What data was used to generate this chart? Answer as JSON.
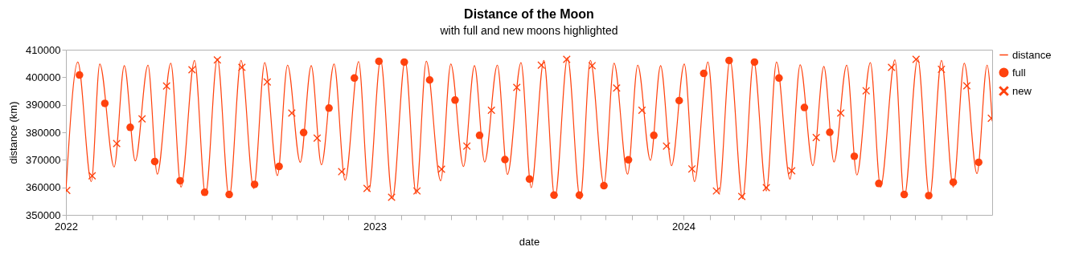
{
  "chart_data": {
    "type": "line",
    "title": "Distance of the Moon",
    "subtitle": "with full and new moons highlighted",
    "xlabel": "date",
    "ylabel": "distance (km)",
    "xlim": [
      "2022-01-01",
      "2024-12-31"
    ],
    "xticks": [
      {
        "value": "2022-01",
        "label": "2022"
      },
      {
        "value": "2022-02",
        "label": null
      },
      {
        "value": "2022-03",
        "label": null
      },
      {
        "value": "2022-04",
        "label": null
      },
      {
        "value": "2022-05",
        "label": null
      },
      {
        "value": "2022-06",
        "label": null
      },
      {
        "value": "2022-07",
        "label": null
      },
      {
        "value": "2022-08",
        "label": null
      },
      {
        "value": "2022-09",
        "label": null
      },
      {
        "value": "2022-10",
        "label": null
      },
      {
        "value": "2022-11",
        "label": null
      },
      {
        "value": "2022-12",
        "label": null
      },
      {
        "value": "2023-01",
        "label": "2023"
      },
      {
        "value": "2023-02",
        "label": null
      },
      {
        "value": "2023-03",
        "label": null
      },
      {
        "value": "2023-04",
        "label": null
      },
      {
        "value": "2023-05",
        "label": null
      },
      {
        "value": "2023-06",
        "label": null
      },
      {
        "value": "2023-07",
        "label": null
      },
      {
        "value": "2023-08",
        "label": null
      },
      {
        "value": "2023-09",
        "label": null
      },
      {
        "value": "2023-10",
        "label": null
      },
      {
        "value": "2023-11",
        "label": null
      },
      {
        "value": "2023-12",
        "label": null
      },
      {
        "value": "2024-01",
        "label": "2024"
      },
      {
        "value": "2024-02",
        "label": null
      },
      {
        "value": "2024-03",
        "label": null
      },
      {
        "value": "2024-04",
        "label": null
      },
      {
        "value": "2024-05",
        "label": null
      },
      {
        "value": "2024-06",
        "label": null
      },
      {
        "value": "2024-07",
        "label": null
      },
      {
        "value": "2024-08",
        "label": null
      },
      {
        "value": "2024-09",
        "label": null
      },
      {
        "value": "2024-10",
        "label": null
      },
      {
        "value": "2024-11",
        "label": null
      },
      {
        "value": "2024-12",
        "label": null
      }
    ],
    "ylim": [
      350000,
      410000
    ],
    "yticks": [
      350000,
      360000,
      370000,
      380000,
      390000,
      400000,
      410000
    ],
    "legend": "right",
    "series": [
      {
        "name": "distance",
        "type": "line",
        "marker": "none",
        "line_style": "solid",
        "color": "#ff420e",
        "x": [
          "2022-01-01",
          "2022-01-15",
          "2022-01-31",
          "2022-02-10",
          "2022-02-27",
          "2022-03-11",
          "2022-03-24",
          "2022-04-08",
          "2022-04-19",
          "2022-05-05",
          "2022-05-17",
          "2022-06-02",
          "2022-06-15",
          "2022-06-29",
          "2022-07-13",
          "2022-07-27",
          "2022-08-11",
          "2022-08-24",
          "2022-09-08",
          "2022-09-20",
          "2022-10-05",
          "2022-10-18",
          "2022-10-30",
          "2022-11-14",
          "2022-11-27",
          "2022-12-13",
          "2022-12-25",
          "2023-01-08",
          "2023-01-22",
          "2023-02-06",
          "2023-02-19",
          "2023-03-03",
          "2023-03-20",
          "2023-04-01",
          "2023-04-16",
          "2023-04-29",
          "2023-05-11",
          "2023-05-26",
          "2023-06-07",
          "2023-06-23",
          "2023-07-05",
          "2023-07-20",
          "2023-08-02",
          "2023-08-17",
          "2023-09-01",
          "2023-09-13",
          "2023-09-29",
          "2023-10-11",
          "2023-10-27",
          "2023-11-08",
          "2023-11-23",
          "2023-12-05",
          "2023-12-18",
          "2024-01-02",
          "2024-01-14",
          "2024-01-30",
          "2024-02-12",
          "2024-02-25",
          "2024-03-11",
          "2024-03-24",
          "2024-04-08",
          "2024-04-20",
          "2024-05-06",
          "2024-05-18",
          "2024-06-02",
          "2024-06-15",
          "2024-06-27",
          "2024-07-12",
          "2024-07-24",
          "2024-08-09",
          "2024-08-21",
          "2024-09-07",
          "2024-09-18",
          "2024-10-04",
          "2024-10-18",
          "2024-11-01",
          "2024-11-15",
          "2024-11-28",
          "2024-12-13",
          "2024-12-25",
          "2024-12-31"
        ],
        "values": [
          358900,
          405500,
          362100,
          404800,
          367400,
          404200,
          369600,
          404400,
          364800,
          405100,
          360100,
          406100,
          357200,
          406800,
          356200,
          406100,
          359600,
          405300,
          364300,
          404400,
          369100,
          404200,
          368200,
          404800,
          362600,
          405700,
          358700,
          406300,
          355800,
          406100,
          357700,
          405800,
          362400,
          404800,
          367600,
          404200,
          369200,
          404400,
          364700,
          405300,
          359900,
          406100,
          355900,
          407100,
          355700,
          406100,
          361100,
          405100,
          364800,
          404400,
          369800,
          404200,
          367900,
          404800,
          362100,
          405500,
          357700,
          406500,
          355900,
          406100,
          358700,
          405500,
          363000,
          404500,
          367900,
          403900,
          369200,
          404400,
          364500,
          405300,
          360100,
          406300,
          356200,
          406800,
          356200,
          406100,
          360100,
          405100,
          365000,
          404400,
          384000
        ]
      },
      {
        "name": "full",
        "type": "scatter",
        "marker": "circle",
        "color": "#ff420e",
        "x": [
          "2022-01-17",
          "2022-02-16",
          "2022-03-18",
          "2022-04-16",
          "2022-05-16",
          "2022-06-14",
          "2022-07-13",
          "2022-08-12",
          "2022-09-10",
          "2022-10-09",
          "2022-11-08",
          "2022-12-08",
          "2023-01-06",
          "2023-02-05",
          "2023-03-07",
          "2023-04-06",
          "2023-05-05",
          "2023-06-04",
          "2023-07-03",
          "2023-08-01",
          "2023-08-31",
          "2023-09-29",
          "2023-10-28",
          "2023-11-27",
          "2023-12-27",
          "2024-01-25",
          "2024-02-24",
          "2024-03-25",
          "2024-04-23",
          "2024-05-23",
          "2024-06-22",
          "2024-07-21",
          "2024-08-19",
          "2024-09-18",
          "2024-10-17",
          "2024-11-15",
          "2024-12-15"
        ],
        "values": [
          400800,
          390500,
          381800,
          369400,
          362400,
          358200,
          357400,
          361100,
          367600,
          379900,
          388800,
          399700,
          405800,
          405500,
          399000,
          391700,
          378900,
          370100,
          363000,
          357200,
          357200,
          360600,
          370000,
          378900,
          391500,
          401400,
          406100,
          405500,
          399700,
          389000,
          380000,
          371300,
          361400,
          357400,
          357000,
          361900,
          369100
        ]
      },
      {
        "name": "new",
        "type": "scatter",
        "marker": "cross",
        "color": "#ff420e",
        "x": [
          "2022-01-02",
          "2022-02-01",
          "2022-03-02",
          "2022-04-01",
          "2022-04-30",
          "2022-05-30",
          "2022-06-29",
          "2022-07-28",
          "2022-08-27",
          "2022-09-25",
          "2022-10-25",
          "2022-11-23",
          "2022-12-23",
          "2023-01-21",
          "2023-02-20",
          "2023-03-21",
          "2023-04-20",
          "2023-05-19",
          "2023-06-18",
          "2023-07-17",
          "2023-08-16",
          "2023-09-15",
          "2023-10-14",
          "2023-11-13",
          "2023-12-12",
          "2024-01-11",
          "2024-02-09",
          "2024-03-10",
          "2024-04-08",
          "2024-05-08",
          "2024-06-06",
          "2024-07-05",
          "2024-08-04",
          "2024-09-03",
          "2024-10-02",
          "2024-11-01",
          "2024-12-01",
          "2024-12-30"
        ],
        "values": [
          358900,
          364200,
          375900,
          384900,
          396800,
          402700,
          406300,
          403600,
          398300,
          387000,
          377900,
          365700,
          359600,
          356400,
          358700,
          366600,
          375000,
          388000,
          396300,
          404400,
          406500,
          404200,
          396100,
          388000,
          375000,
          366700,
          358700,
          356700,
          359900,
          366000,
          378100,
          387000,
          395100,
          403600,
          406500,
          402900,
          396900,
          385100
        ]
      }
    ]
  }
}
